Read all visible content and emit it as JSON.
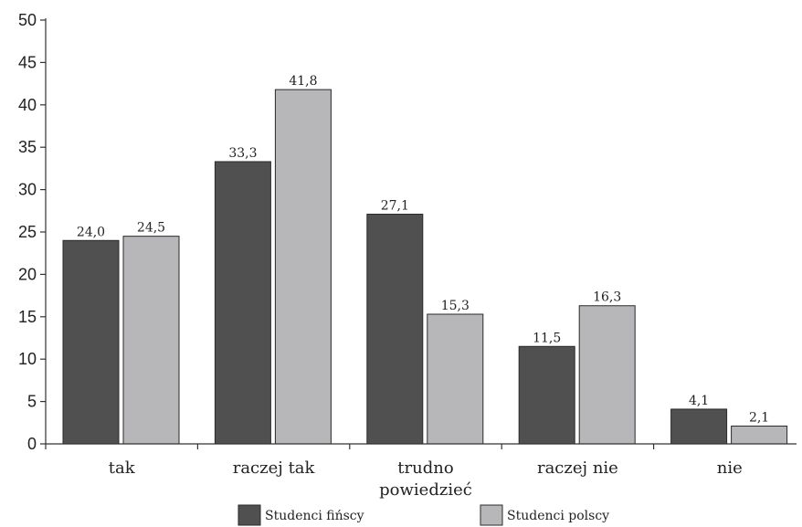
{
  "chart_data": {
    "type": "bar",
    "categories": [
      "tak",
      "raczej tak",
      "trudno powiedzieć",
      "raczej nie",
      "nie"
    ],
    "category_lines": [
      [
        "tak"
      ],
      [
        "raczej tak"
      ],
      [
        "trudno",
        "powiedzieć"
      ],
      [
        "raczej nie"
      ],
      [
        "nie"
      ]
    ],
    "series": [
      {
        "name": "Studenci fińscy",
        "values": [
          24.0,
          33.3,
          27.1,
          11.5,
          4.1
        ],
        "labels": [
          "24,0",
          "33,3",
          "27,1",
          "11,5",
          "4,1"
        ],
        "color": "#505050"
      },
      {
        "name": "Studenci polscy",
        "values": [
          24.5,
          41.8,
          15.3,
          16.3,
          2.1
        ],
        "labels": [
          "24,5",
          "41,8",
          "15,3",
          "16,3",
          "2,1"
        ],
        "color": "#b7b7b9"
      }
    ],
    "yticks": [
      0,
      5,
      10,
      15,
      20,
      25,
      30,
      35,
      40,
      45,
      50
    ],
    "ylim": [
      0,
      50
    ],
    "grid": false,
    "legend_position": "bottom"
  }
}
